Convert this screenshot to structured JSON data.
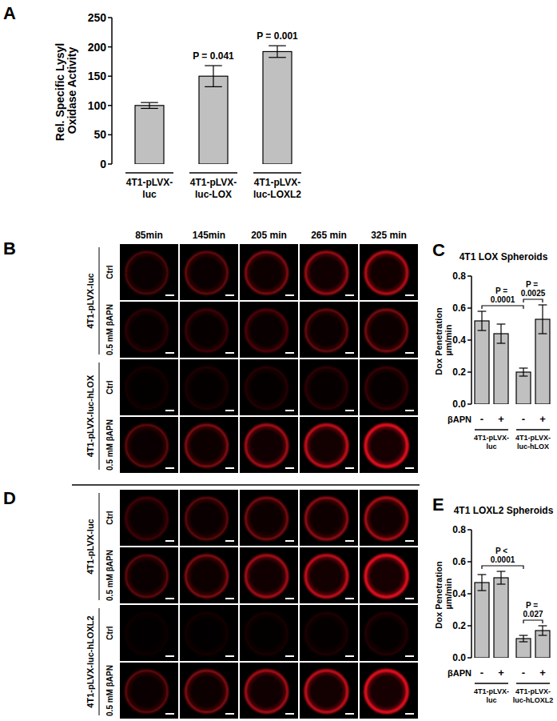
{
  "chart_data": [
    {
      "type": "bar",
      "panel_label": "A",
      "y_label": "Rel. Specific Lysyl Oxidase Activity",
      "categories": [
        "4T1-pLVX-luc",
        "4T1-pLVX-luc-LOX",
        "4T1-pLVX-luc-LOXL2"
      ],
      "values": [
        100,
        150,
        192
      ],
      "errors": [
        5,
        18,
        10
      ],
      "color": "#c0c0c0",
      "ylim": [
        0,
        250
      ],
      "yticks": [
        0,
        50,
        100,
        150,
        200,
        250
      ],
      "annotations": [
        {
          "category": 1,
          "text": "P = 0.041"
        },
        {
          "category": 2,
          "text": "P = 0.001"
        }
      ]
    },
    {
      "type": "bar",
      "panel_label": "C",
      "title": "4T1 LOX Spheroids",
      "y_label": "Dox Penetration µm/min",
      "x_label": "βAPN",
      "categories": [
        "-",
        "+",
        "-",
        "+"
      ],
      "groups": [
        {
          "label": "4T1-pLVX-luc",
          "start": 0,
          "end": 1
        },
        {
          "label": "4T1-pLVX-luc-hLOX",
          "start": 2,
          "end": 3
        }
      ],
      "values": [
        0.52,
        0.44,
        0.2,
        0.53
      ],
      "errors": [
        0.06,
        0.06,
        0.025,
        0.09
      ],
      "color": "#c0c0c0",
      "ylim": [
        0,
        0.8
      ],
      "yticks": [
        {
          "value": 0,
          "label": "0.0"
        },
        {
          "value": 0.2,
          "label": "0.2"
        },
        {
          "value": 0.4,
          "label": "0.4"
        },
        {
          "value": 0.6,
          "label": "0.6"
        },
        {
          "value": 0.8,
          "label": "0.8"
        }
      ],
      "comparisons": [
        {
          "from": 0,
          "to": 2,
          "text": "P = 0.0001"
        },
        {
          "from": 2,
          "to": 3,
          "text": "P = 0.0025"
        }
      ]
    },
    {
      "type": "bar",
      "panel_label": "E",
      "title": "4T1 LOXL2 Spheroids",
      "y_label": "Dox Penetration µm/min",
      "x_label": "βAPN",
      "categories": [
        "-",
        "+",
        "-",
        "+"
      ],
      "groups": [
        {
          "label": "4T1-pLVX-luc",
          "start": 0,
          "end": 1
        },
        {
          "label": "4T1-pLVX-luc-hLOXL2",
          "start": 2,
          "end": 3
        }
      ],
      "values": [
        0.47,
        0.5,
        0.12,
        0.17
      ],
      "errors": [
        0.05,
        0.04,
        0.02,
        0.03
      ],
      "color": "#c0c0c0",
      "ylim": [
        0,
        0.8
      ],
      "yticks": [
        {
          "value": 0,
          "label": "0.0"
        },
        {
          "value": 0.2,
          "label": "0.2"
        },
        {
          "value": 0.4,
          "label": "0.4"
        },
        {
          "value": 0.6,
          "label": "0.6"
        },
        {
          "value": 0.8,
          "label": "0.8"
        }
      ],
      "comparisons": [
        {
          "from": 0,
          "to": 2,
          "text": "P < 0.0001"
        },
        {
          "from": 2,
          "to": 3,
          "text": "P = 0.027"
        }
      ]
    }
  ],
  "image_panels": [
    {
      "panel_label": "B",
      "time_labels": [
        "85min",
        "145min",
        "205 min",
        "265 min",
        "325 min"
      ],
      "groups": [
        {
          "label": "4T1-pLVX-luc",
          "rows": [
            "Ctrl",
            "0.5 mM βAPN"
          ]
        },
        {
          "label": "4T1-pLVX-luc-hLOX",
          "rows": [
            "Ctrl",
            "0.5 mM βAPN"
          ]
        }
      ]
    },
    {
      "panel_label": "D",
      "groups": [
        {
          "label": "4T1-pLVX-luc",
          "rows": [
            "Ctrl",
            "0.5 mM βAPN"
          ]
        },
        {
          "label": "4T1-pLVX-luc-hLOXL2",
          "rows": [
            "Ctrl",
            "0.5 mM βAPN"
          ]
        }
      ]
    }
  ]
}
